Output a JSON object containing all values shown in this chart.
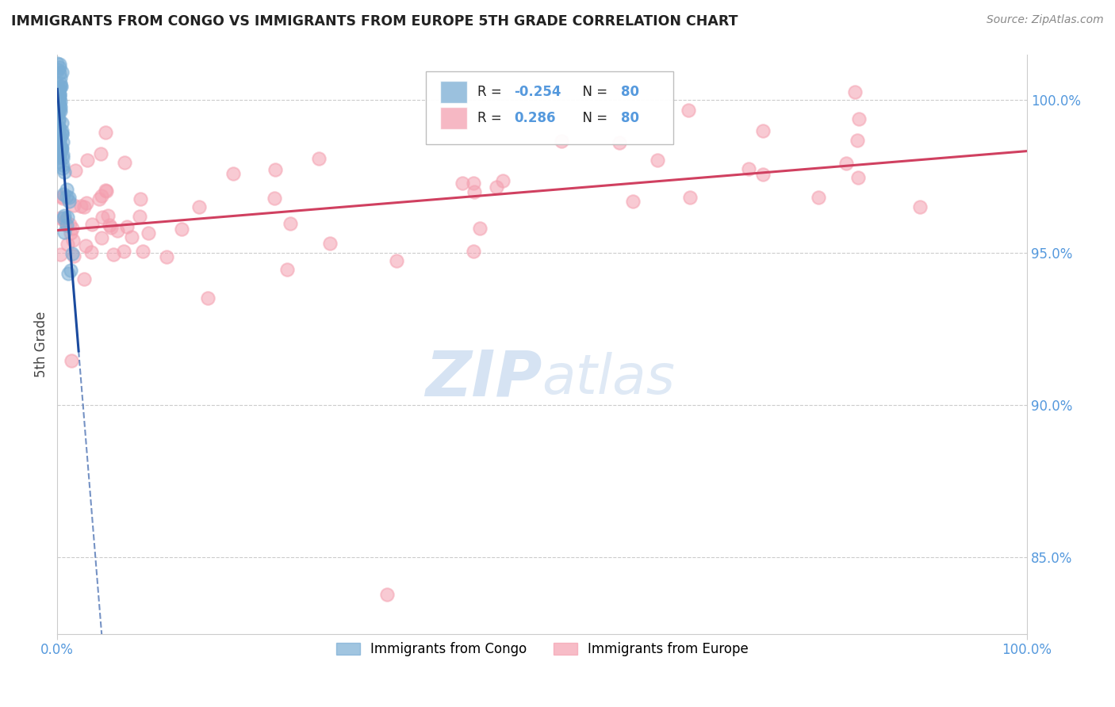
{
  "title": "IMMIGRANTS FROM CONGO VS IMMIGRANTS FROM EUROPE 5TH GRADE CORRELATION CHART",
  "source": "Source: ZipAtlas.com",
  "ylabel": "5th Grade",
  "legend_r_congo": "-0.254",
  "legend_r_europe": "0.286",
  "legend_n": "80",
  "congo_color": "#7aadd4",
  "europe_color": "#f4a0b0",
  "congo_edge_color": "#7aadd4",
  "europe_edge_color": "#f4a0b0",
  "congo_trend_color": "#1a4a9e",
  "europe_trend_color": "#d04060",
  "tick_color": "#5599dd",
  "watermark_color": "#c5d8ee",
  "background_color": "#ffffff",
  "grid_color": "#cccccc",
  "title_color": "#222222",
  "ylabel_color": "#444444",
  "source_color": "#888888",
  "xlim": [
    0,
    100
  ],
  "ylim_bottom": 82.5,
  "ylim_top": 101.5,
  "ytick_vals": [
    85.0,
    90.0,
    95.0,
    100.0
  ]
}
